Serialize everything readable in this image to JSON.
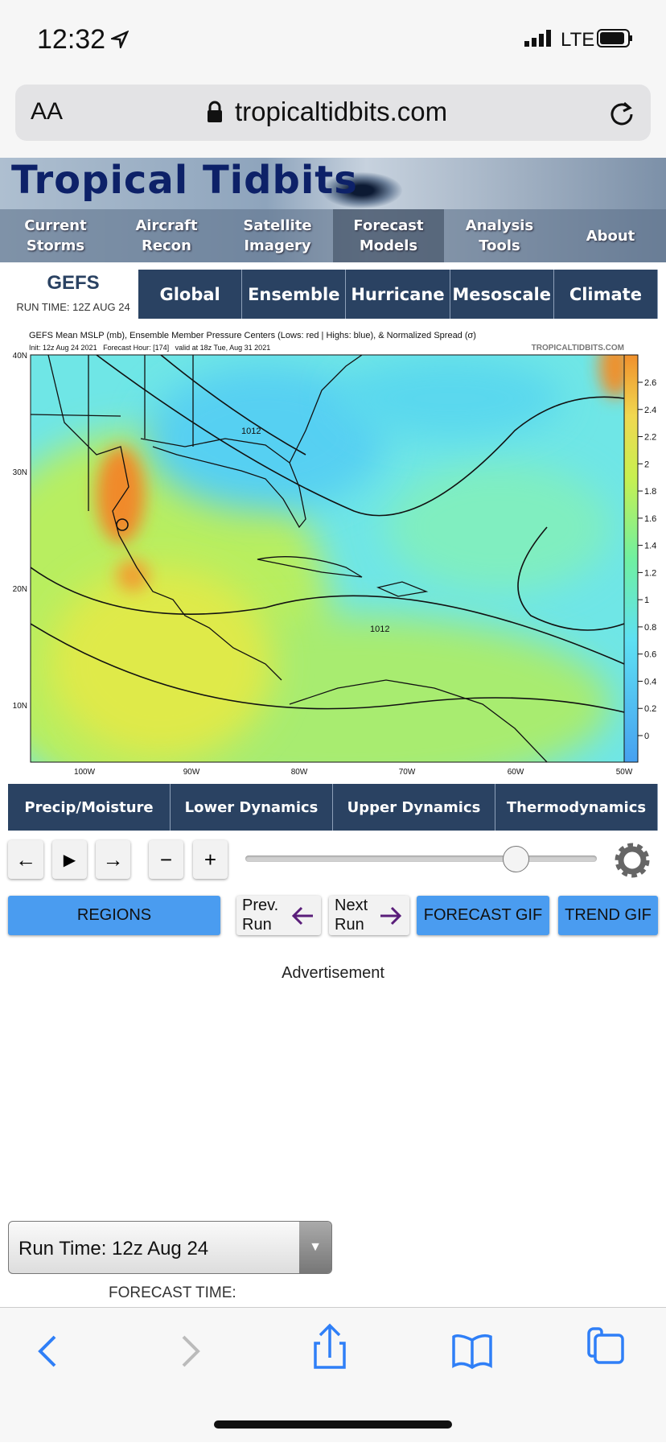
{
  "status_bar": {
    "time": "12:32",
    "network": "LTE"
  },
  "address_bar": {
    "text_size": "AA",
    "url": "tropicaltidbits.com"
  },
  "header": {
    "logo": "Tropical Tidbits",
    "nav": [
      "Current Storms",
      "Aircraft Recon",
      "Satellite Imagery",
      "Forecast Models",
      "Analysis Tools",
      "About"
    ]
  },
  "model": {
    "name": "GEFS",
    "run_time": "RUN TIME: 12Z AUG 24",
    "tabs": [
      "Global",
      "Ensemble",
      "Hurricane",
      "Mesoscale",
      "Climate"
    ]
  },
  "map": {
    "title": "GEFS Mean MSLP (mb), Ensemble Member Pressure Centers (Lows: red | Highs: blue), & Normalized Spread (σ)",
    "init": "Init: 12z Aug 24 2021   Forecast Hour: [174]   valid at 18z Tue, Aug 31 2021",
    "watermark": "TROPICALTIDBITS.COM",
    "lat_labels": [
      "40N",
      "30N",
      "20N",
      "10N"
    ],
    "lon_labels": [
      "100W",
      "90W",
      "80W",
      "70W",
      "60W",
      "50W"
    ],
    "colorbar_ticks": [
      "2.6",
      "2.4",
      "2.2",
      "2",
      "1.8",
      "1.6",
      "1.4",
      "1.2",
      "1",
      "0.8",
      "0.6",
      "0.4",
      "0.2",
      "0"
    ],
    "isobar_labels": [
      "1012",
      "1012"
    ]
  },
  "categories": [
    "Precip/Moisture",
    "Lower Dynamics",
    "Upper Dynamics",
    "Thermodynamics"
  ],
  "buttons": {
    "regions": "REGIONS",
    "prev": "Prev. Run",
    "next": "Next Run",
    "forecast_gif": "FORECAST GIF",
    "trend_gif": "TREND GIF"
  },
  "ad_label": "Advertisement",
  "run_select": "Run Time: 12z Aug 24",
  "forecast_time": "FORECAST TIME:"
}
